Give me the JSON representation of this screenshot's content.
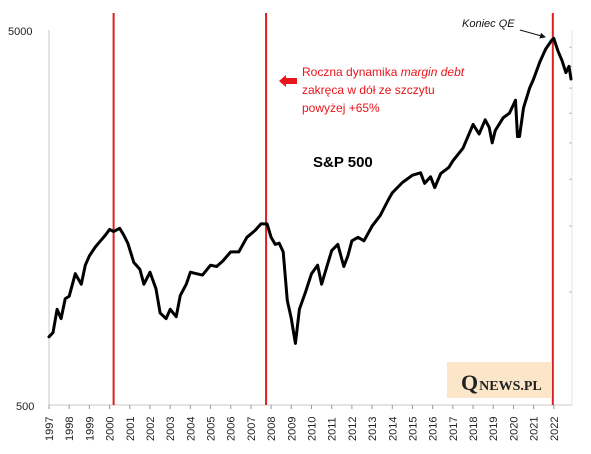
{
  "chart_data": {
    "type": "line",
    "scale_y": "log",
    "ylim": [
      500,
      5000
    ],
    "y_ticks": [
      "5000",
      "500"
    ],
    "x_ticks": [
      "1997",
      "1998",
      "1999",
      "2000",
      "2001",
      "2002",
      "2003",
      "2004",
      "2005",
      "2006",
      "2007",
      "2008",
      "2009",
      "2010",
      "2011",
      "2012",
      "2013",
      "2014",
      "2015",
      "2016",
      "2017",
      "2018",
      "2019",
      "2020",
      "2021",
      "2022"
    ],
    "xlim": [
      1997.0,
      2022.9
    ],
    "series": [
      {
        "name": "S&P 500",
        "color": "#000000",
        "x": [
          1997.0,
          1997.2,
          1997.4,
          1997.6,
          1997.8,
          1998.0,
          1998.3,
          1998.6,
          1998.8,
          1999.0,
          1999.3,
          1999.6,
          1999.8,
          2000.0,
          2000.2,
          2000.5,
          2000.7,
          2000.9,
          2001.2,
          2001.5,
          2001.7,
          2002.0,
          2002.3,
          2002.5,
          2002.8,
          2003.0,
          2003.3,
          2003.5,
          2003.8,
          2004.0,
          2004.3,
          2004.6,
          2005.0,
          2005.3,
          2005.6,
          2006.0,
          2006.4,
          2006.8,
          2007.2,
          2007.5,
          2007.8,
          2008.0,
          2008.2,
          2008.4,
          2008.6,
          2008.8,
          2009.0,
          2009.2,
          2009.4,
          2009.7,
          2010.0,
          2010.3,
          2010.5,
          2010.8,
          2011.0,
          2011.3,
          2011.6,
          2011.8,
          2012.0,
          2012.3,
          2012.6,
          2013.0,
          2013.4,
          2013.8,
          2014.0,
          2014.5,
          2015.0,
          2015.4,
          2015.6,
          2015.9,
          2016.1,
          2016.4,
          2016.8,
          2017.0,
          2017.5,
          2018.0,
          2018.3,
          2018.6,
          2018.8,
          2018.95,
          2019.1,
          2019.5,
          2019.8,
          2020.1,
          2020.2,
          2020.3,
          2020.5,
          2020.8,
          2021.0,
          2021.3,
          2021.6,
          2021.9,
          2022.0,
          2022.2,
          2022.4,
          2022.6,
          2022.75,
          2022.85
        ],
        "values": [
          760,
          780,
          900,
          850,
          960,
          975,
          1120,
          1050,
          1180,
          1250,
          1320,
          1380,
          1420,
          1470,
          1450,
          1480,
          1420,
          1350,
          1200,
          1150,
          1050,
          1130,
          1020,
          880,
          850,
          900,
          860,
          980,
          1050,
          1130,
          1120,
          1110,
          1180,
          1170,
          1210,
          1280,
          1280,
          1400,
          1460,
          1520,
          1520,
          1400,
          1340,
          1350,
          1280,
          950,
          850,
          730,
          900,
          1000,
          1120,
          1180,
          1050,
          1190,
          1290,
          1340,
          1170,
          1250,
          1370,
          1400,
          1370,
          1500,
          1600,
          1760,
          1840,
          1960,
          2050,
          2080,
          1950,
          2030,
          1900,
          2070,
          2150,
          2240,
          2420,
          2800,
          2640,
          2880,
          2750,
          2500,
          2700,
          2920,
          3000,
          3250,
          2600,
          2600,
          3100,
          3500,
          3700,
          4100,
          4450,
          4700,
          4750,
          4400,
          4150,
          3850,
          4000,
          3700
        ]
      }
    ],
    "vlines": [
      2000.2,
      2007.75,
      2021.95
    ],
    "vline_color": "#d92121",
    "annotation": {
      "line1_pre": "Roczna dynamika ",
      "line1_it": "margin debt",
      "line2": "zakręca w dół ze szczytu",
      "line3": "powyżej +65%",
      "color": "#e8151b"
    },
    "series_label": "S&P 500",
    "koniec_label": "Koniec QE"
  },
  "logo": {
    "q": "Q",
    "rest": "NEWS.PL"
  }
}
